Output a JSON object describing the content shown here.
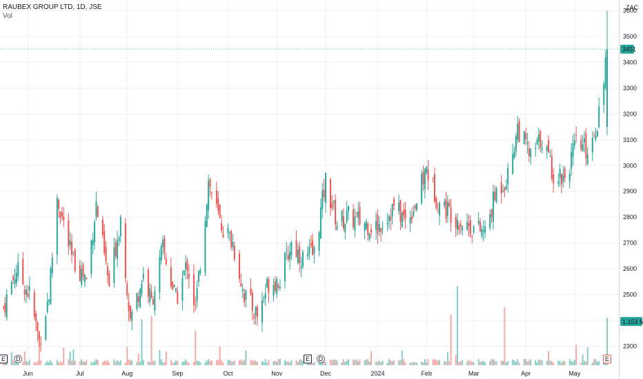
{
  "header": {
    "title": "RAUBEX GROUP LTD, 1D, JSE",
    "sub": "Vol"
  },
  "currency": "ZAC",
  "last_price_label": "3451",
  "volume_label": "1.153 M",
  "colors": {
    "up": "#26a69a",
    "down": "#ef5350",
    "vol_up": "#84cdc6",
    "vol_down": "#f4a9a7",
    "grid": "#eef0f3"
  },
  "markers": [
    {
      "type": "E",
      "style": "box",
      "date": "2023-05-17"
    },
    {
      "type": "D",
      "style": "circle",
      "date": "2023-05-26"
    },
    {
      "type": "E",
      "style": "box",
      "date": "2023-11-20"
    },
    {
      "type": "D",
      "style": "circle",
      "date": "2023-11-28"
    },
    {
      "type": "E",
      "style": "box-red",
      "date": "2024-05-22"
    }
  ],
  "chart_data": {
    "type": "candlestick",
    "x_axis": {
      "type": "date",
      "ticks": [
        "Jun",
        "Jul",
        "Aug",
        "Sep",
        "Oct",
        "Nov",
        "Dec",
        "2024",
        "Feb",
        "Mar",
        "Apr",
        "May"
      ],
      "range": [
        "2023-05-17",
        "2024-05-22"
      ]
    },
    "y_axis": {
      "range": [
        2200,
        3620
      ],
      "ticks": [
        2300,
        2400,
        2500,
        2600,
        2700,
        2800,
        2900,
        3000,
        3100,
        3200,
        3300,
        3400,
        3500,
        3600
      ],
      "side": "right"
    },
    "price_series": [
      {
        "date": "2023-05-17",
        "close": 2450
      },
      {
        "date": "2023-05-25",
        "close": 2600
      },
      {
        "date": "2023-06-02",
        "close": 2500
      },
      {
        "date": "2023-06-08",
        "close": 2320
      },
      {
        "date": "2023-06-14",
        "close": 2500
      },
      {
        "date": "2023-06-19",
        "close": 2880
      },
      {
        "date": "2023-06-28",
        "close": 2640
      },
      {
        "date": "2023-07-07",
        "close": 2560
      },
      {
        "date": "2023-07-13",
        "close": 2850
      },
      {
        "date": "2023-07-21",
        "close": 2530
      },
      {
        "date": "2023-07-28",
        "close": 2800
      },
      {
        "date": "2023-08-03",
        "close": 2400
      },
      {
        "date": "2023-08-11",
        "close": 2580
      },
      {
        "date": "2023-08-16",
        "close": 2470
      },
      {
        "date": "2023-08-23",
        "close": 2680
      },
      {
        "date": "2023-08-31",
        "close": 2480
      },
      {
        "date": "2023-09-07",
        "close": 2620
      },
      {
        "date": "2023-09-12",
        "close": 2440
      },
      {
        "date": "2023-09-20",
        "close": 2940
      },
      {
        "date": "2023-09-27",
        "close": 2780
      },
      {
        "date": "2023-10-05",
        "close": 2700
      },
      {
        "date": "2023-10-12",
        "close": 2500
      },
      {
        "date": "2023-10-20",
        "close": 2420
      },
      {
        "date": "2023-10-27",
        "close": 2550
      },
      {
        "date": "2023-11-03",
        "close": 2560
      },
      {
        "date": "2023-11-10",
        "close": 2700
      },
      {
        "date": "2023-11-17",
        "close": 2640
      },
      {
        "date": "2023-11-24",
        "close": 2660
      },
      {
        "date": "2023-12-01",
        "close": 2940
      },
      {
        "date": "2023-12-08",
        "close": 2780
      },
      {
        "date": "2023-12-15",
        "close": 2800
      },
      {
        "date": "2024-01-02",
        "close": 2760
      },
      {
        "date": "2024-01-12",
        "close": 2840
      },
      {
        "date": "2024-01-19",
        "close": 2790
      },
      {
        "date": "2024-01-26",
        "close": 2860
      },
      {
        "date": "2024-02-01",
        "close": 2990
      },
      {
        "date": "2024-02-08",
        "close": 2860
      },
      {
        "date": "2024-02-16",
        "close": 2820
      },
      {
        "date": "2024-02-23",
        "close": 2780
      },
      {
        "date": "2024-03-01",
        "close": 2760
      },
      {
        "date": "2024-03-08",
        "close": 2740
      },
      {
        "date": "2024-03-15",
        "close": 2900
      },
      {
        "date": "2024-03-22",
        "close": 2960
      },
      {
        "date": "2024-03-28",
        "close": 3150
      },
      {
        "date": "2024-04-05",
        "close": 3030
      },
      {
        "date": "2024-04-12",
        "close": 3110
      },
      {
        "date": "2024-04-19",
        "close": 2970
      },
      {
        "date": "2024-04-26",
        "close": 2960
      },
      {
        "date": "2024-05-03",
        "close": 3080
      },
      {
        "date": "2024-05-10",
        "close": 3060
      },
      {
        "date": "2024-05-16",
        "close": 3170
      },
      {
        "date": "2024-05-22",
        "close": 3451
      }
    ],
    "volume_spikes": [
      {
        "date": "2023-06-08",
        "level": 0.34
      },
      {
        "date": "2023-08-10",
        "level": 0.58
      },
      {
        "date": "2023-08-16",
        "level": 0.62
      },
      {
        "date": "2023-09-12",
        "level": 0.44
      },
      {
        "date": "2024-02-16",
        "level": 0.64
      },
      {
        "date": "2024-02-20",
        "level": 1.0
      },
      {
        "date": "2024-03-20",
        "level": 0.73
      },
      {
        "date": "2024-05-03",
        "level": 0.26
      },
      {
        "date": "2024-05-22",
        "level": 0.6
      }
    ],
    "price_max_wick": 3600
  }
}
